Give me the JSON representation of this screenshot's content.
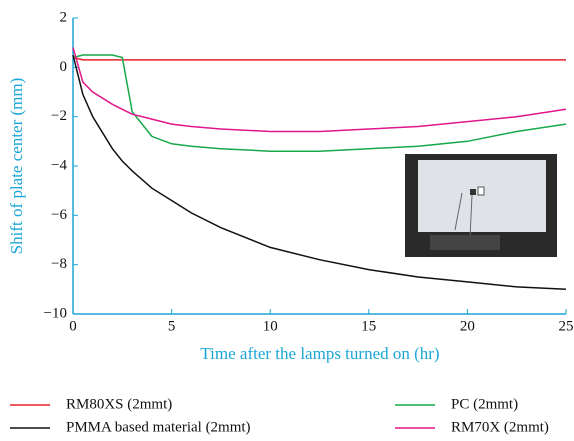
{
  "chart_data": {
    "type": "line",
    "x_label": "Time after the lamps turned on (hr)",
    "y_label": "Shift of plate center (mm)",
    "x": [
      0,
      0.5,
      1,
      2,
      2.5,
      3,
      4,
      5,
      6,
      7.5,
      10,
      12.5,
      15,
      17.5,
      20,
      22.5,
      25
    ],
    "series": [
      {
        "name": "RM80XS (2mmt)",
        "color": "#e8202a",
        "values": [
          0.4,
          0.3,
          0.3,
          0.3,
          0.3,
          0.3,
          0.3,
          0.3,
          0.3,
          0.3,
          0.3,
          0.3,
          0.3,
          0.3,
          0.3,
          0.3,
          0.3
        ]
      },
      {
        "name": "PC (2mmt)",
        "color": "#17a84a",
        "values": [
          0.4,
          0.5,
          0.5,
          0.5,
          0.4,
          -1.8,
          -2.8,
          -3.1,
          -3.2,
          -3.3,
          -3.4,
          -3.4,
          -3.3,
          -3.2,
          -3.0,
          -2.6,
          -2.3
        ]
      },
      {
        "name": "PMMA based material (2mmt)",
        "color": "#111111",
        "values": [
          0.5,
          -1.1,
          -2.0,
          -3.3,
          -3.8,
          -4.2,
          -4.9,
          -5.4,
          -5.9,
          -6.5,
          -7.3,
          -7.8,
          -8.2,
          -8.5,
          -8.7,
          -8.9,
          -9.0
        ]
      },
      {
        "name": "RM70X (2mmt)",
        "color": "#e0168a",
        "values": [
          0.8,
          -0.6,
          -1.0,
          -1.5,
          -1.7,
          -1.9,
          -2.1,
          -2.3,
          -2.4,
          -2.5,
          -2.6,
          -2.6,
          -2.5,
          -2.4,
          -2.2,
          -2.0,
          -1.7
        ]
      }
    ],
    "xlim": [
      0,
      25
    ],
    "xticks": [
      0,
      5,
      10,
      15,
      20,
      25
    ],
    "ylim": [
      -10,
      2
    ],
    "yticks": [
      {
        "value": -10,
        "label": "−10"
      },
      {
        "value": -8,
        "label": "−8"
      },
      {
        "value": -6,
        "label": "−6"
      },
      {
        "value": -4,
        "label": "−4"
      },
      {
        "value": -2,
        "label": "−2"
      },
      0,
      2
    ]
  }
}
